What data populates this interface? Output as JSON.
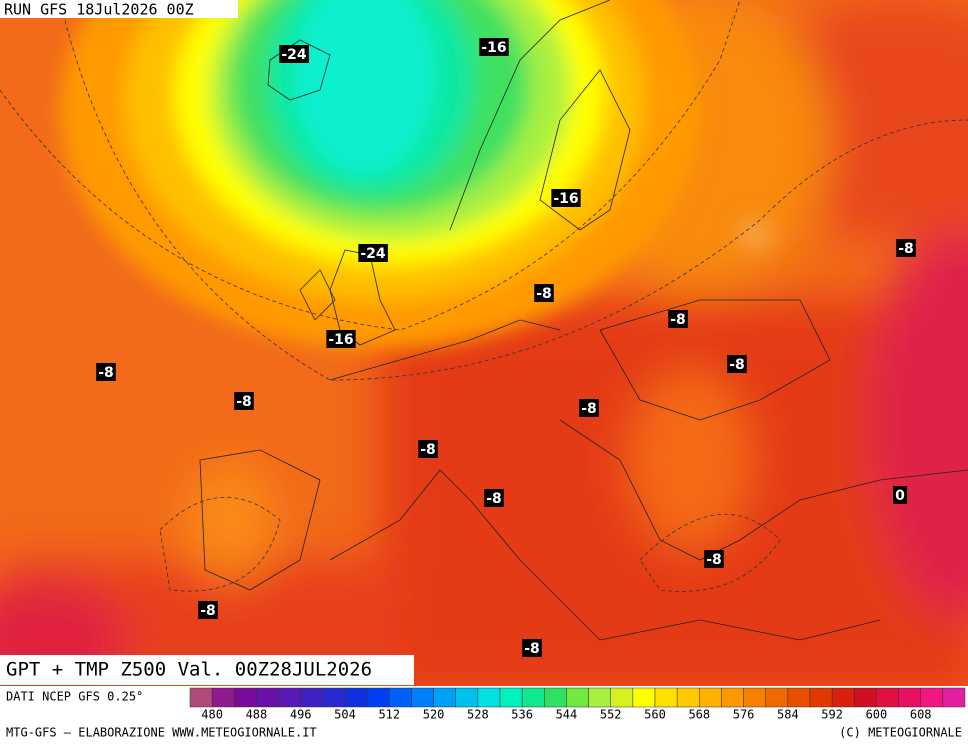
{
  "header": {
    "run": "RUN GFS 18Jul2026 00Z"
  },
  "title": "GPT + TMP Z500 Val. 00Z28JUL2026",
  "source": "DATI NCEP GFS 0.25°",
  "colorbar": {
    "colors": [
      "#b04a7a",
      "#8e1a8e",
      "#7a0a9a",
      "#6a10aa",
      "#5a18b8",
      "#4020c0",
      "#2a28d0",
      "#1030e0",
      "#0040f0",
      "#0060f8",
      "#0080f8",
      "#00a0f8",
      "#00c0f0",
      "#00e0e0",
      "#00f0c0",
      "#10e890",
      "#30e060",
      "#70e840",
      "#a8f040",
      "#d8f020",
      "#ffff00",
      "#ffe000",
      "#ffc800",
      "#ffb000",
      "#ff9800",
      "#f88000",
      "#f06800",
      "#e85000",
      "#e03800",
      "#d82010",
      "#d01020",
      "#e01040",
      "#e81060",
      "#f01880",
      "#e020a0"
    ],
    "ticks": [
      "480",
      "488",
      "496",
      "504",
      "512",
      "520",
      "528",
      "536",
      "544",
      "552",
      "560",
      "568",
      "576",
      "584",
      "592",
      "600",
      "608"
    ]
  },
  "map_labels": [
    "-24",
    "-16",
    "-16",
    "-24",
    "-16",
    "-8",
    "-8",
    "-8",
    "-8",
    "-8",
    "-8",
    "-8",
    "-8",
    "-8",
    "0",
    "-8",
    "-8",
    "-8"
  ],
  "footer": {
    "left": "MTG-GFS — ELABORAZIONE WWW.METEOGIORNALE.IT",
    "right": "(C) METEOGIORNALE"
  }
}
